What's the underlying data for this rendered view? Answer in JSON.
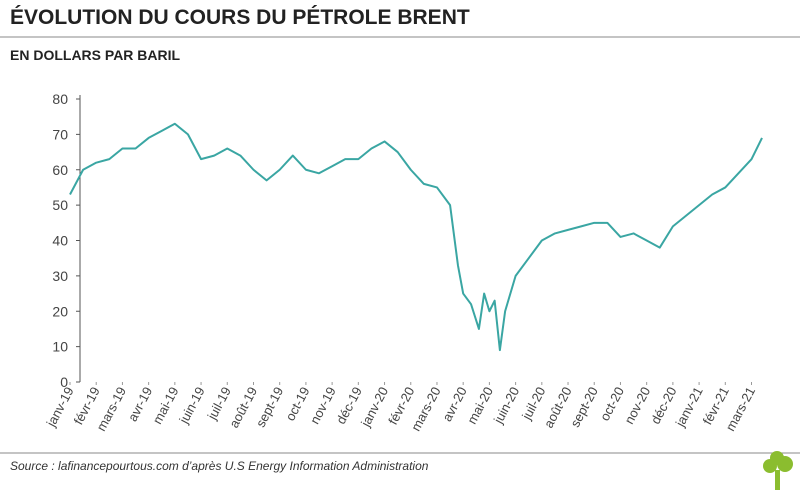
{
  "chart_data": {
    "type": "line",
    "title": "ÉVOLUTION DU COURS DU PÉTROLE BRENT",
    "subtitle": "EN DOLLARS PAR BARIL",
    "source": "Source : lafinancepourtous.com d’après U.S Energy Information Administration",
    "xlim": [
      0,
      26.4
    ],
    "ylim": [
      0,
      80
    ],
    "yticks": [
      0,
      10,
      20,
      30,
      40,
      50,
      60,
      70,
      80
    ],
    "xticks": [
      {
        "value": 0,
        "label": "janv-19"
      },
      {
        "value": 1,
        "label": "févr-19"
      },
      {
        "value": 2,
        "label": "mars-19"
      },
      {
        "value": 3,
        "label": "avr-19"
      },
      {
        "value": 4,
        "label": "mai-19"
      },
      {
        "value": 5,
        "label": "juin-19"
      },
      {
        "value": 6,
        "label": "juil-19"
      },
      {
        "value": 7,
        "label": "août-19"
      },
      {
        "value": 8,
        "label": "sept-19"
      },
      {
        "value": 9,
        "label": "oct-19"
      },
      {
        "value": 10,
        "label": "nov-19"
      },
      {
        "value": 11,
        "label": "déc-19"
      },
      {
        "value": 12,
        "label": "janv-20"
      },
      {
        "value": 13,
        "label": "févr-20"
      },
      {
        "value": 14,
        "label": "mars-20"
      },
      {
        "value": 15,
        "label": "avr-20"
      },
      {
        "value": 16,
        "label": "mai-20"
      },
      {
        "value": 17,
        "label": "juin-20"
      },
      {
        "value": 18,
        "label": "juil-20"
      },
      {
        "value": 19,
        "label": "août-20"
      },
      {
        "value": 20,
        "label": "sept-20"
      },
      {
        "value": 21,
        "label": "oct-20"
      },
      {
        "value": 22,
        "label": "nov-20"
      },
      {
        "value": 23,
        "label": "déc-20"
      },
      {
        "value": 24,
        "label": "janv-21"
      },
      {
        "value": 25,
        "label": "févr-21"
      },
      {
        "value": 26,
        "label": "mars-21"
      }
    ],
    "x": [
      0,
      0.5,
      1,
      1.5,
      2,
      2.5,
      3,
      3.5,
      4,
      4.5,
      5,
      5.5,
      6,
      6.5,
      7,
      7.5,
      8,
      8.5,
      9,
      9.5,
      10,
      10.5,
      11,
      11.5,
      12,
      12.5,
      13,
      13.5,
      14,
      14.5,
      14.8,
      15,
      15.3,
      15.6,
      15.8,
      16,
      16.2,
      16.4,
      16.6,
      17,
      17.5,
      18,
      18.5,
      19,
      19.5,
      20,
      20.5,
      21,
      21.5,
      22,
      22.5,
      23,
      23.5,
      24,
      24.5,
      25,
      25.5,
      26,
      26.4
    ],
    "series": [
      {
        "name": "Brent",
        "color": "#3aa6a3",
        "values": [
          53,
          60,
          62,
          63,
          66,
          66,
          69,
          71,
          73,
          70,
          63,
          64,
          66,
          64,
          60,
          57,
          60,
          64,
          60,
          59,
          61,
          63,
          63,
          66,
          68,
          65,
          60,
          56,
          55,
          50,
          33,
          25,
          22,
          15,
          25,
          20,
          23,
          9,
          20,
          30,
          35,
          40,
          42,
          43,
          44,
          45,
          45,
          41,
          42,
          40,
          38,
          44,
          47,
          50,
          53,
          55,
          59,
          63,
          69
        ]
      }
    ]
  }
}
